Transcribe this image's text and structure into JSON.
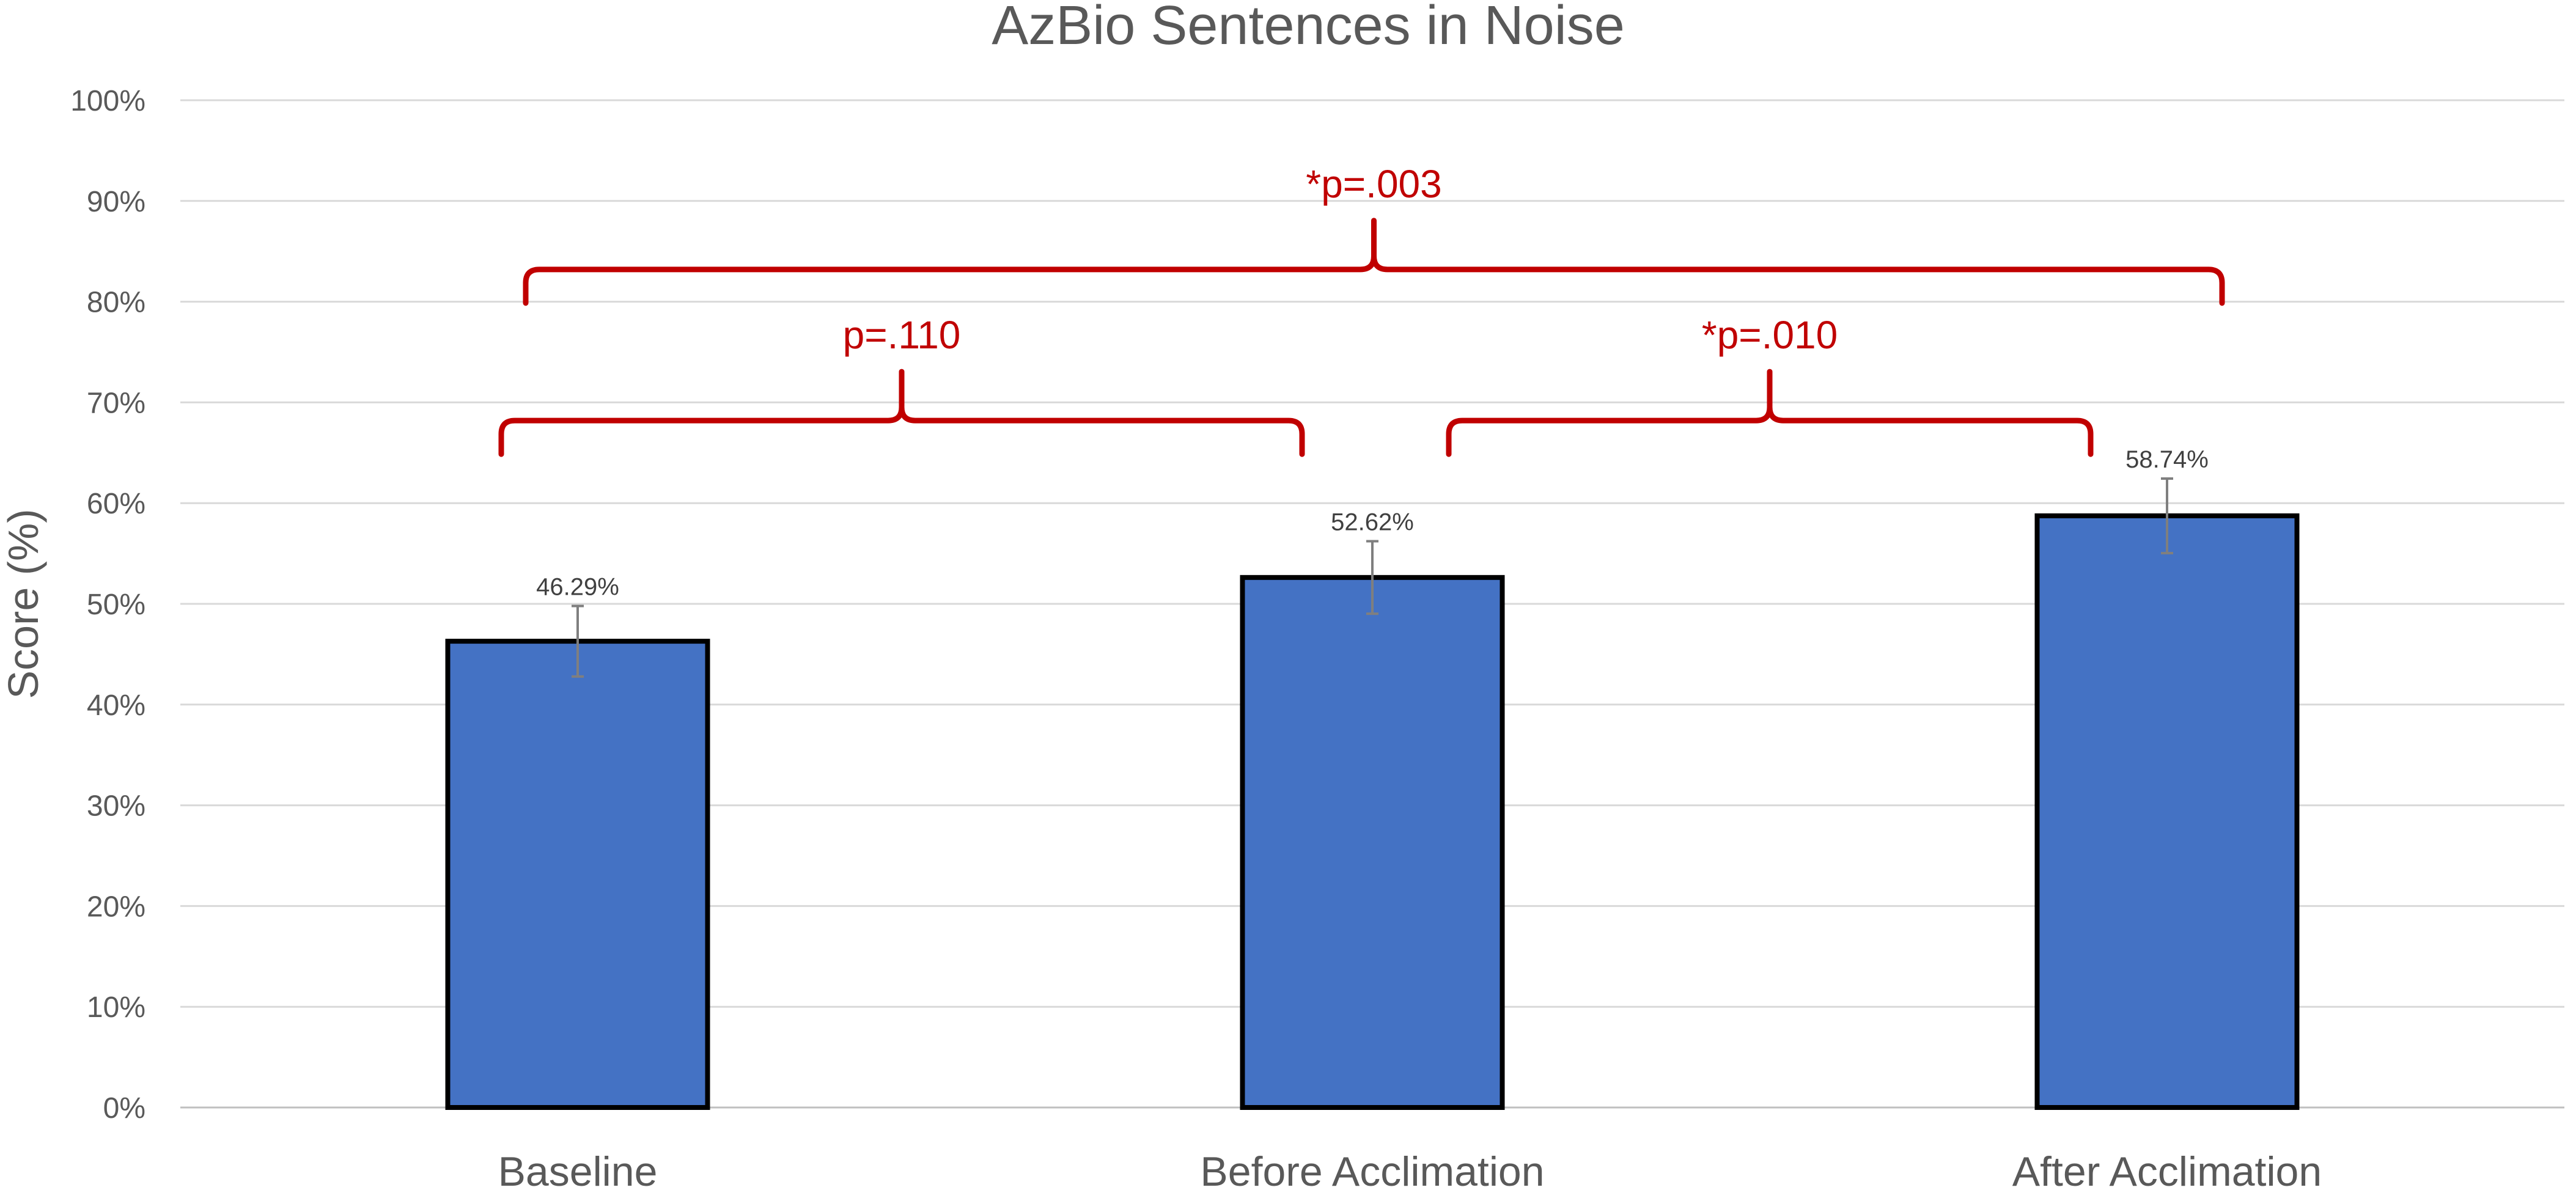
{
  "chart_data": {
    "type": "bar",
    "title": "AzBio Sentences in Noise",
    "xlabel": "",
    "ylabel": "Score (%)",
    "ylim": [
      0,
      100
    ],
    "yticks": [
      0,
      10,
      20,
      30,
      40,
      50,
      60,
      70,
      80,
      90,
      100
    ],
    "ytick_labels": [
      "0%",
      "10%",
      "20%",
      "30%",
      "40%",
      "50%",
      "60%",
      "70%",
      "80%",
      "90%",
      "100%"
    ],
    "categories": [
      "Baseline",
      "Before Acclimation",
      "After Acclimation"
    ],
    "values": [
      46.29,
      52.62,
      58.74
    ],
    "data_labels": [
      "46.29%",
      "52.62%",
      "58.74%"
    ],
    "error": [
      3.5,
      3.6,
      3.7
    ],
    "grid": true,
    "legend": "none",
    "bar_color": "#4472C4",
    "bar_edge_color": "#000000",
    "annotations": [
      {
        "label": "p=.110",
        "from": 0,
        "to": 1,
        "level": 65
      },
      {
        "label": "*p=.010",
        "from": 1,
        "to": 2,
        "level": 65
      },
      {
        "label": "*p=.003",
        "from": 0,
        "to": 2,
        "level": 80
      }
    ],
    "annotation_color": "#C00000"
  }
}
